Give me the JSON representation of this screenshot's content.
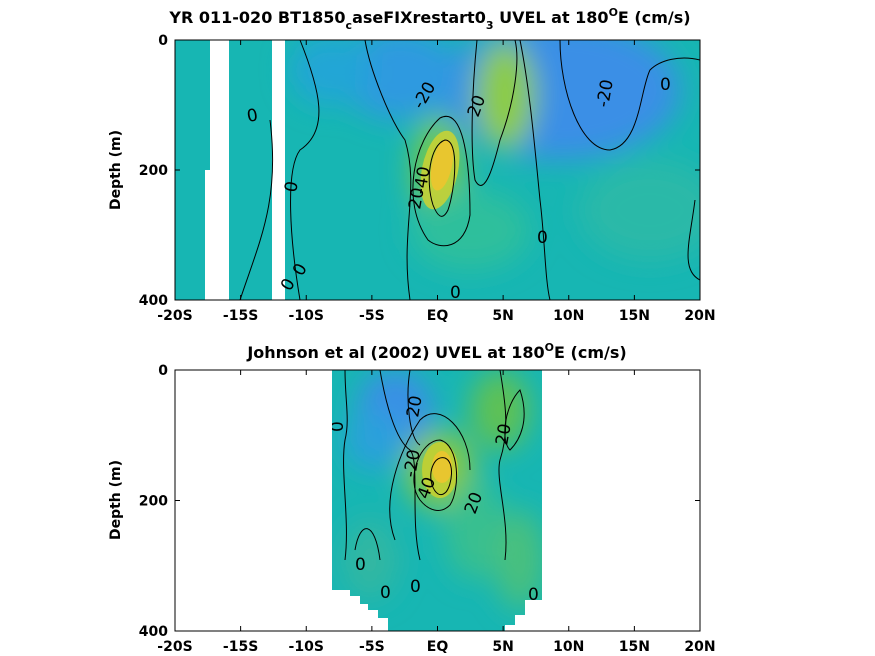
{
  "chart_data": [
    {
      "type": "heatmap",
      "title": "YR 011-020 BT1850",
      "title_sub": "c",
      "title_mid": "aseFIXrestart0",
      "title_sub2": "3",
      "title_mid2": " UVEL at 180",
      "title_sup": "O",
      "title_end": "E (cm/s)",
      "ylabel": "Depth (m)",
      "xlim": [
        -20,
        20
      ],
      "ylim": [
        0,
        400
      ],
      "y_reversed": true,
      "x_ticks": [
        -20,
        -15,
        -10,
        -5,
        0,
        5,
        10,
        15,
        20
      ],
      "x_tick_labels": [
        "-20S",
        "-15S",
        "-10S",
        "-5S",
        "EQ",
        "5N",
        "10N",
        "15N",
        "20N"
      ],
      "y_ticks": [
        0,
        200,
        400
      ],
      "y_tick_labels": [
        "0",
        "200",
        "400"
      ],
      "contour_labels": [
        "0",
        "0",
        "-20",
        "-40",
        "20",
        "20",
        "-20",
        "0",
        "0",
        "0",
        "0",
        "0"
      ],
      "features": [
        {
          "label": "core",
          "x": 0.5,
          "y": 180,
          "value": 50
        },
        {
          "label": "north_core",
          "x": 5,
          "y": 100,
          "value": 25
        },
        {
          "label": "westward",
          "x": 8,
          "y": 80,
          "value": -25
        }
      ]
    },
    {
      "type": "heatmap",
      "title": "Johnson et al (2002) UVEL at 180",
      "title_sup": "O",
      "title_end": "E (cm/s)",
      "ylabel": "Depth (m)",
      "xlim": [
        -20,
        20
      ],
      "ylim": [
        0,
        400
      ],
      "y_reversed": true,
      "x_ticks": [
        -20,
        -15,
        -10,
        -5,
        0,
        5,
        10,
        15,
        20
      ],
      "x_tick_labels": [
        "-20S",
        "-15S",
        "-10S",
        "-5S",
        "EQ",
        "5N",
        "10N",
        "15N",
        "20N"
      ],
      "y_ticks": [
        0,
        200,
        400
      ],
      "y_tick_labels": [
        "0",
        "200",
        "400"
      ],
      "data_extent_x": [
        -8,
        8
      ],
      "contour_labels": [
        "0",
        "20",
        "20",
        "-20",
        "40",
        "20",
        "0",
        "0",
        "0",
        "0"
      ],
      "features": [
        {
          "label": "core",
          "x": 0.5,
          "y": 160,
          "value": 45
        },
        {
          "label": "north_flow",
          "x": 5,
          "y": 100,
          "value": 20
        }
      ]
    }
  ]
}
